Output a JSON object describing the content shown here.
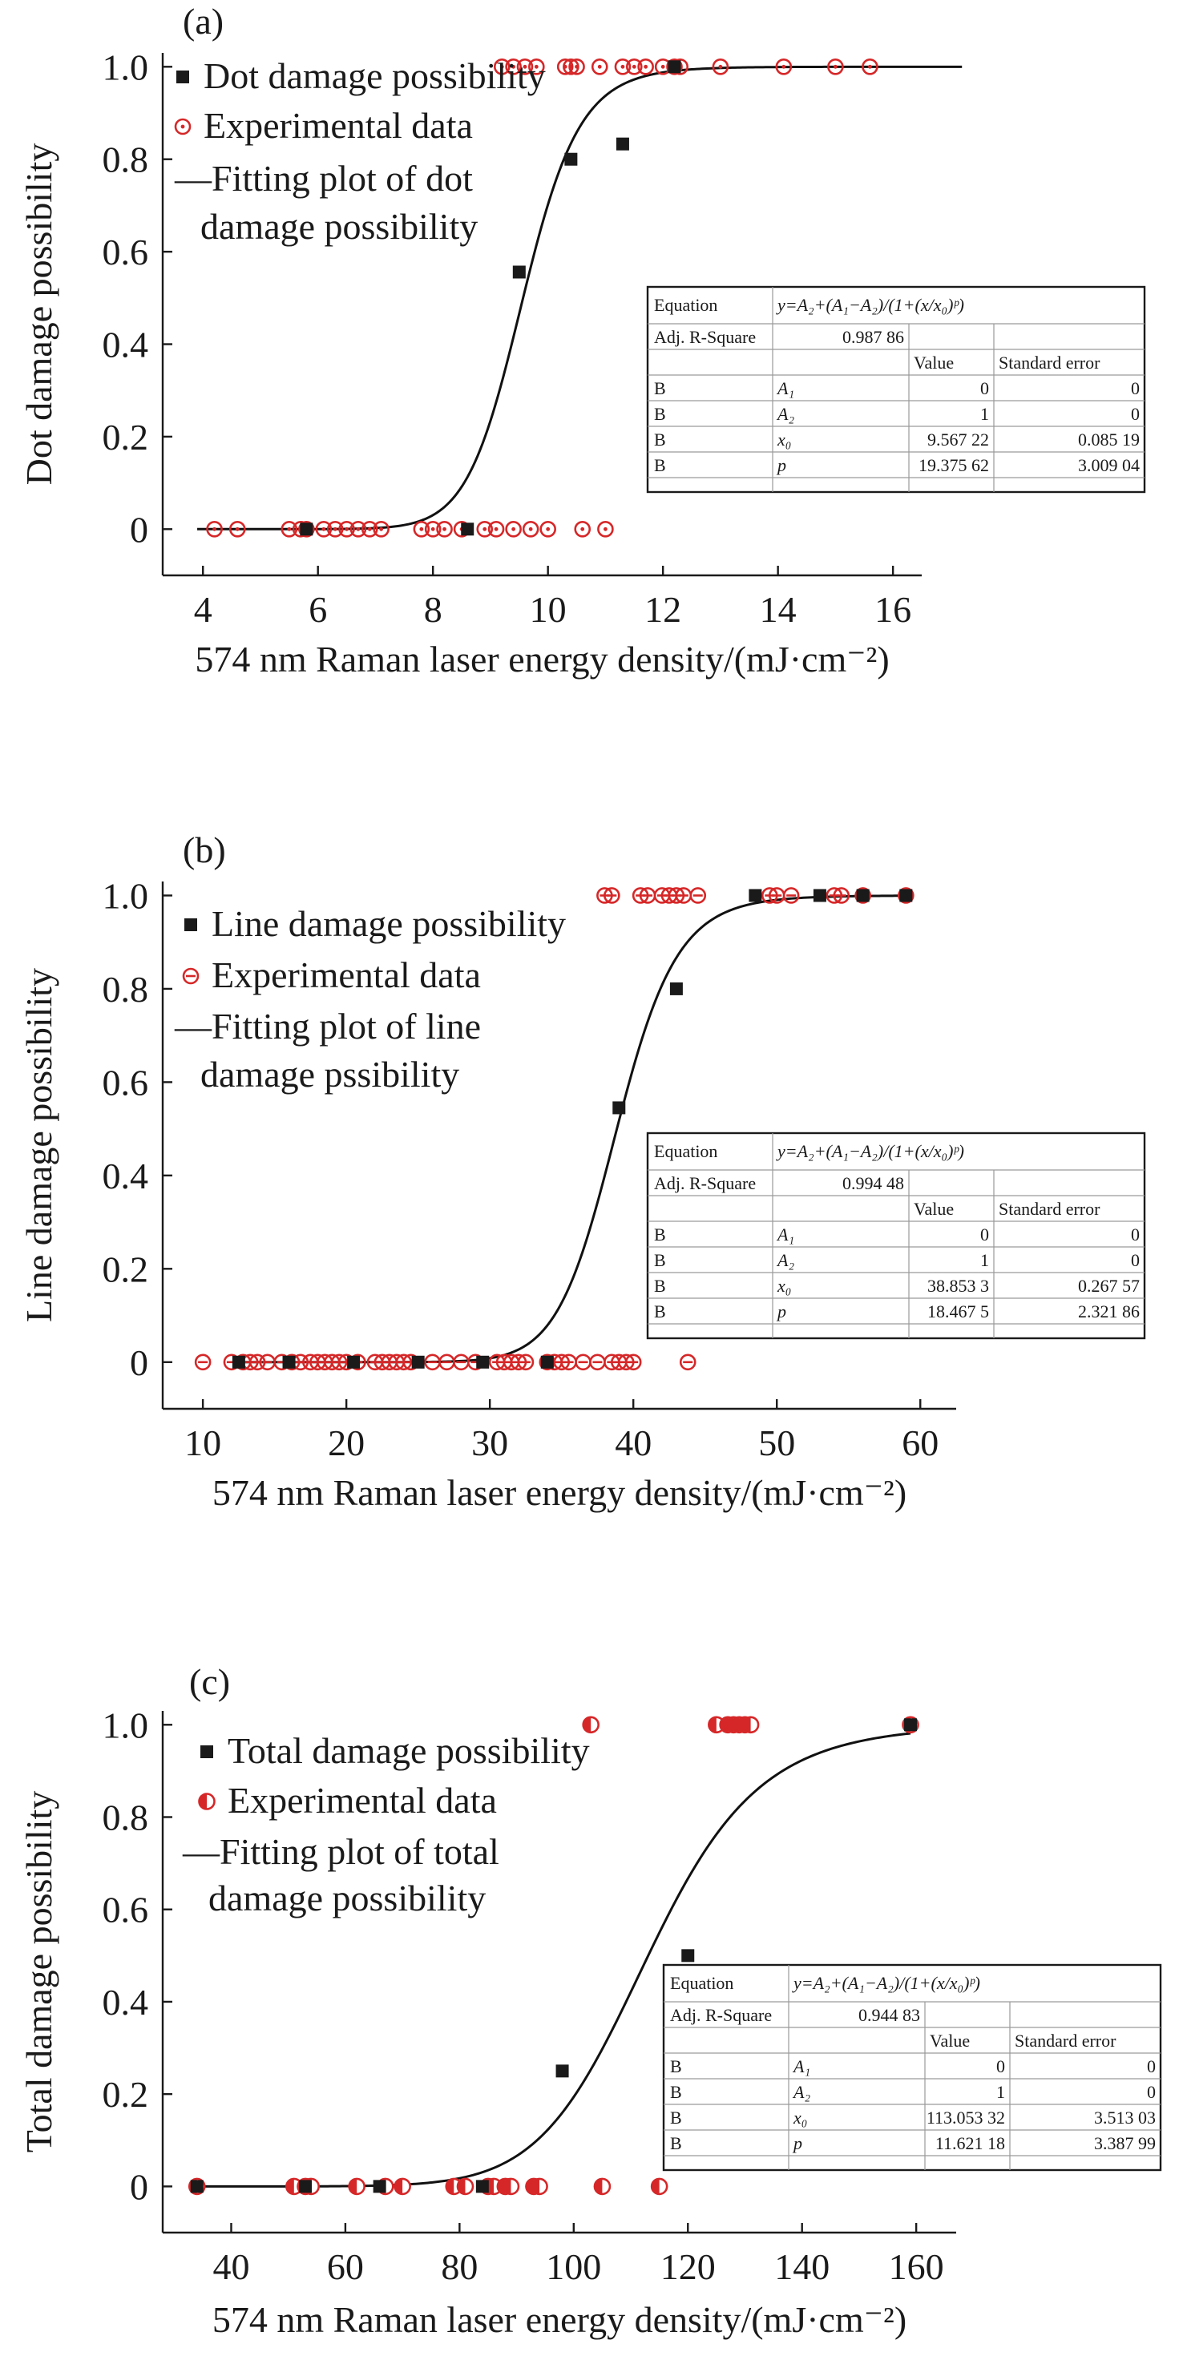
{
  "chart_data": [
    {
      "type": "scatter",
      "panel_label": "(a)",
      "xlabel": "574 nm Raman laser energy density/(mJ·cm⁻²)",
      "ylabel": "Dot damage possibility",
      "xlim": [
        3.3,
        16.5
      ],
      "ylim": [
        -0.1,
        1.03
      ],
      "xticks": [
        "4",
        "6",
        "8",
        "10",
        "12",
        "14",
        "16"
      ],
      "yticks": [
        "0",
        "0.2",
        "0.4",
        "0.6",
        "0.8",
        "1.0"
      ],
      "legend": [
        "Dot damage possibility",
        "Experimental data",
        "—Fitting plot of dot",
        "damage possibility"
      ],
      "series": [
        {
          "name": "Dot damage possibility",
          "marker": "square",
          "color": "#1a1a1a",
          "x": [
            5.8,
            8.6,
            9.5,
            10.4,
            11.3,
            12.2
          ],
          "y": [
            0,
            0,
            0.556,
            0.8,
            0.833,
            1.0
          ]
        },
        {
          "name": "Experimental data",
          "marker": "circle-dot",
          "color": "#d62728",
          "x": [
            4.2,
            4.6,
            5.5,
            5.7,
            5.8,
            6.1,
            6.3,
            6.5,
            6.7,
            6.9,
            7.1,
            7.8,
            8.0,
            8.2,
            8.5,
            8.9,
            9.1,
            9.4,
            9.7,
            10.0,
            10.6,
            11.0,
            9.2,
            9.4,
            9.6,
            9.8,
            10.3,
            10.4,
            10.5,
            10.9,
            11.3,
            11.5,
            11.7,
            12.0,
            12.2,
            12.3,
            13.0,
            14.1,
            15.0,
            15.6
          ],
          "y": [
            0,
            0,
            0,
            0,
            0,
            0,
            0,
            0,
            0,
            0,
            0,
            0,
            0,
            0,
            0,
            0,
            0,
            0,
            0,
            0,
            0,
            0,
            1,
            1,
            1,
            1,
            1,
            1,
            1,
            1,
            1,
            1,
            1,
            1,
            1,
            1,
            1,
            1,
            1,
            1
          ]
        },
        {
          "name": "Fitting plot of dot damage possibility",
          "type": "line",
          "color": "#111111",
          "function": "boltzmann",
          "A1": 0,
          "A2": 1,
          "x0": 9.56722,
          "p": 19.37562,
          "x_range": [
            3.9,
            17.2
          ]
        }
      ],
      "table": {
        "equation_label": "Equation",
        "equation": "y=A₂+(A₁−A₂)/(1+(x/x₀)ᵖ)",
        "adj_label": "Adj. R-Square",
        "adj_value": "0.987 86",
        "header_value": "Value",
        "header_error": "Standard error",
        "rows": [
          {
            "group": "B",
            "param": "A₁",
            "value": "0",
            "error": "0"
          },
          {
            "group": "B",
            "param": "A₂",
            "value": "1",
            "error": "0"
          },
          {
            "group": "B",
            "param": "x₀",
            "value": "9.567 22",
            "error": "0.085 19"
          },
          {
            "group": "B",
            "param": "p",
            "value": "19.375 62",
            "error": "3.009 04"
          }
        ]
      }
    },
    {
      "type": "scatter",
      "panel_label": "(b)",
      "xlabel": "574 nm Raman laser energy density/(mJ·cm⁻²)",
      "ylabel": "Line damage possibility",
      "xlim": [
        7.2,
        62.5
      ],
      "ylim": [
        -0.1,
        1.03
      ],
      "xticks": [
        "10",
        "20",
        "30",
        "40",
        "50",
        "60"
      ],
      "yticks": [
        "0",
        "0.2",
        "0.4",
        "0.6",
        "0.8",
        "1.0"
      ],
      "legend": [
        "Line damage possibility",
        "Experimental data",
        "—Fitting plot of line",
        "damage pssibility"
      ],
      "series": [
        {
          "name": "Line damage possibility",
          "marker": "square",
          "color": "#1a1a1a",
          "x": [
            12.5,
            16.0,
            20.5,
            25.0,
            29.5,
            34.0,
            39.0,
            43.0,
            48.5,
            53.0,
            56.0,
            59.0
          ],
          "y": [
            0,
            0,
            0,
            0,
            0,
            0,
            0.545,
            0.8,
            1.0,
            1.0,
            1.0,
            1.0
          ]
        },
        {
          "name": "Experimental data",
          "marker": "circle-minus",
          "color": "#d62728",
          "x": [
            10.0,
            12.0,
            12.8,
            13.3,
            13.8,
            14.5,
            15.5,
            16.2,
            16.8,
            17.5,
            18.0,
            18.5,
            19.0,
            19.5,
            20.0,
            20.8,
            22.0,
            22.5,
            23.0,
            23.5,
            24.0,
            24.5,
            26.0,
            27.0,
            28.0,
            29.0,
            30.5,
            31.0,
            31.5,
            32.0,
            32.5,
            34.0,
            34.5,
            35.0,
            35.5,
            36.5,
            37.5,
            38.5,
            39.0,
            39.5,
            40.0,
            43.8,
            38.0,
            38.5,
            40.5,
            41.0,
            42.0,
            42.5,
            43.0,
            43.5,
            44.5,
            49.5,
            50.0,
            51.0,
            54.0,
            54.5,
            56.0,
            59.0
          ],
          "y": [
            0,
            0,
            0,
            0,
            0,
            0,
            0,
            0,
            0,
            0,
            0,
            0,
            0,
            0,
            0,
            0,
            0,
            0,
            0,
            0,
            0,
            0,
            0,
            0,
            0,
            0,
            0,
            0,
            0,
            0,
            0,
            0,
            0,
            0,
            0,
            0,
            0,
            0,
            0,
            0,
            0,
            0,
            1,
            1,
            1,
            1,
            1,
            1,
            1,
            1,
            1,
            1,
            1,
            1,
            1,
            1,
            1,
            1
          ]
        },
        {
          "name": "Fitting plot of line damage pssibility",
          "type": "line",
          "color": "#111111",
          "function": "boltzmann",
          "A1": 0,
          "A2": 1,
          "x0": 38.8533,
          "p": 18.4675,
          "x_range": [
            12.3,
            59.0
          ]
        }
      ],
      "table": {
        "equation_label": "Equation",
        "equation": "y=A₂+(A₁−A₂)/(1+(x/x₀)ᵖ)",
        "adj_label": "Adj. R-Square",
        "adj_value": "0.994 48",
        "header_value": "Value",
        "header_error": "Standard error",
        "rows": [
          {
            "group": "B",
            "param": "A₁",
            "value": "0",
            "error": "0"
          },
          {
            "group": "B",
            "param": "A₂",
            "value": "1",
            "error": "0"
          },
          {
            "group": "B",
            "param": "x₀",
            "value": "38.853 3",
            "error": "0.267 57"
          },
          {
            "group": "B",
            "param": "p",
            "value": "18.467 5",
            "error": "2.321 86"
          }
        ]
      }
    },
    {
      "type": "scatter",
      "panel_label": "(c)",
      "xlabel": "574 nm Raman laser energy density/(mJ·cm⁻²)",
      "ylabel": "Total damage possibility",
      "xlim": [
        28,
        167
      ],
      "ylim": [
        -0.1,
        1.03
      ],
      "xticks": [
        "40",
        "60",
        "80",
        "100",
        "120",
        "140",
        "160"
      ],
      "yticks": [
        "0",
        "0.2",
        "0.4",
        "0.6",
        "0.8",
        "1.0"
      ],
      "legend": [
        "Total damage possibility",
        "Experimental data",
        "—Fitting plot of total",
        "damage possibility"
      ],
      "series": [
        {
          "name": "Total damage possibility",
          "marker": "square",
          "color": "#1a1a1a",
          "x": [
            34,
            53,
            66,
            84,
            98,
            120,
            159
          ],
          "y": [
            0,
            0,
            0,
            0,
            0.25,
            0.5,
            1.0
          ]
        },
        {
          "name": "Experimental data",
          "marker": "circle-half",
          "color": "#d62728",
          "x": [
            34,
            51,
            53,
            54,
            62,
            67,
            70,
            79,
            81,
            85,
            86,
            88,
            89,
            93,
            94,
            105,
            115,
            103,
            125,
            127,
            128,
            129,
            130,
            131,
            159
          ],
          "y": [
            0,
            0,
            0,
            0,
            0,
            0,
            0,
            0,
            0,
            0,
            0,
            0,
            0,
            0,
            0,
            0,
            0,
            1,
            1,
            1,
            1,
            1,
            1,
            1,
            1
          ]
        },
        {
          "name": "Fitting plot of total damage possibility",
          "type": "line",
          "color": "#111111",
          "function": "boltzmann",
          "A1": 0,
          "A2": 1,
          "x0": 113.05332,
          "p": 11.62118,
          "x_range": [
            34,
            159
          ]
        }
      ],
      "table": {
        "equation_label": "Equation",
        "equation": "y=A₂+(A₁−A₂)/(1+(x/x₀)ᵖ)",
        "adj_label": "Adj. R-Square",
        "adj_value": "0.944 83",
        "header_value": "Value",
        "header_error": "Standard error",
        "rows": [
          {
            "group": "B",
            "param": "A₁",
            "value": "0",
            "error": "0"
          },
          {
            "group": "B",
            "param": "A₂",
            "value": "1",
            "error": "0"
          },
          {
            "group": "B",
            "param": "x₀",
            "value": "113.053 32",
            "error": "3.513 03"
          },
          {
            "group": "B",
            "param": "p",
            "value": "11.621 18",
            "error": "3.387 99"
          }
        ]
      }
    }
  ]
}
